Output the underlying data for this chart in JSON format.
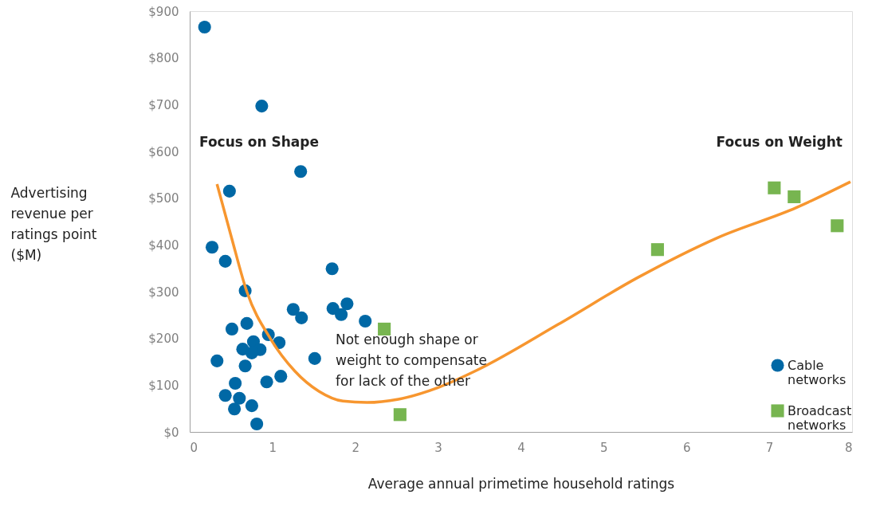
{
  "chart_data": {
    "type": "scatter",
    "xlabel": "Average annual primetime household ratings",
    "ylabel": "Advertising revenue per ratings point ($M)",
    "xlim": [
      0,
      8
    ],
    "xticks": [
      0,
      1,
      2,
      3,
      4,
      5,
      6,
      7,
      8
    ],
    "ylim": [
      0,
      900
    ],
    "yticks": [
      {
        "value": 0,
        "label": "$0"
      },
      {
        "value": 100,
        "label": "$100"
      },
      {
        "value": 200,
        "label": "$200"
      },
      {
        "value": 300,
        "label": "$300"
      },
      {
        "value": 400,
        "label": "$400"
      },
      {
        "value": 500,
        "label": "$500"
      },
      {
        "value": 600,
        "label": "$600"
      },
      {
        "value": 700,
        "label": "$700"
      },
      {
        "value": 800,
        "label": "$800"
      },
      {
        "value": 900,
        "label": "$900"
      }
    ],
    "grid": false,
    "legend": "bottom right",
    "series": [
      {
        "name": "Cable networks",
        "color": "#0068a5",
        "marker": "circle",
        "x": [
          0.18,
          0.87,
          1.34,
          0.48,
          0.27,
          0.43,
          0.67,
          1.72,
          1.25,
          1.35,
          1.73,
          1.9,
          1.83,
          2.12,
          0.51,
          0.69,
          0.95,
          1.08,
          0.77,
          0.64,
          0.85,
          0.75,
          0.33,
          1.51,
          0.67,
          1.1,
          0.93,
          0.55,
          0.43,
          0.6,
          0.75,
          0.54,
          0.81
        ],
        "values": [
          866,
          697,
          557,
          515,
          395,
          365,
          302,
          349,
          262,
          244,
          264,
          274,
          251,
          237,
          220,
          232,
          208,
          191,
          193,
          177,
          176,
          169,
          152,
          157,
          141,
          119,
          107,
          104,
          78,
          72,
          56,
          49,
          17
        ]
      },
      {
        "name": "Broadcast networks",
        "color": "#77b550",
        "marker": "square",
        "x": [
          2.35,
          2.54,
          5.65,
          7.06,
          7.3,
          7.82
        ],
        "values": [
          220,
          37,
          390,
          522,
          503,
          441
        ]
      },
      {
        "type": "line",
        "color": "#f7962f",
        "marker": "none",
        "x": [
          0.33,
          0.5,
          0.69,
          0.98,
          1.27,
          1.56,
          1.85,
          2.14,
          2.52,
          3.0,
          3.48,
          4.45,
          5.41,
          6.37,
          7.33,
          7.98
        ],
        "values": [
          530,
          419,
          300,
          198,
          130,
          87,
          66,
          63,
          70,
          95,
          133,
          230,
          330,
          415,
          480,
          535
        ]
      }
    ],
    "annotations": [
      "Focus on Shape",
      "Focus on Weight",
      "Not enough shape or weight to compensate for lack of the other"
    ]
  }
}
